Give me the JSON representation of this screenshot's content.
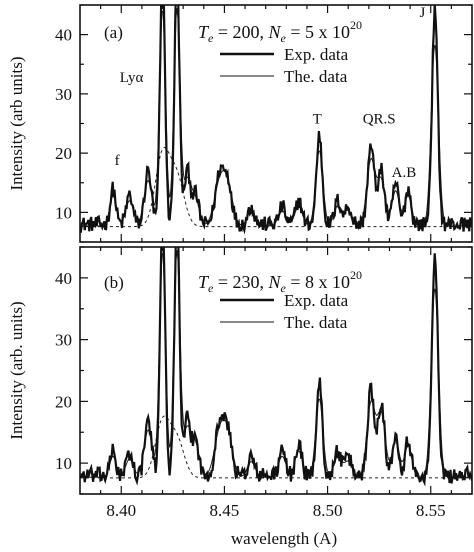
{
  "chart_data": [
    {
      "type": "line",
      "panel_label": "(a)",
      "conditions": {
        "te_symbol": "T",
        "te_sub": "e",
        "te_value": "= 200,",
        "ne_symbol": "N",
        "ne_sub": "e",
        "ne_value": "= 5 x 10",
        "ne_exp": "20"
      },
      "ylabel": "Intensity (arb units)",
      "xlim": [
        8.38,
        8.57
      ],
      "ylim": [
        5,
        45
      ],
      "yticks": [
        10,
        20,
        30,
        40
      ],
      "xticks": [
        8.4,
        8.45,
        8.5,
        8.55
      ],
      "series": [
        {
          "name": "Exp. data",
          "style": "thick"
        },
        {
          "name": "The. data",
          "style": "thin"
        },
        {
          "name": "",
          "style": "dashed"
        }
      ],
      "annotations": [
        {
          "text": "Lyα",
          "x": 8.405,
          "y": 32
        },
        {
          "text": "f",
          "x": 8.398,
          "y": 18
        },
        {
          "text": "T",
          "x": 8.495,
          "y": 25
        },
        {
          "text": "QR.S",
          "x": 8.525,
          "y": 25
        },
        {
          "text": "A.B",
          "x": 8.537,
          "y": 16
        },
        {
          "text": "J",
          "x": 8.546,
          "y": 43
        }
      ],
      "peaks": [
        {
          "x": 8.396,
          "h": 6.0,
          "w": 0.0013
        },
        {
          "x": 8.404,
          "h": 5.0,
          "w": 0.0015
        },
        {
          "x": 8.413,
          "h": 9.0,
          "w": 0.0016
        },
        {
          "x": 8.42,
          "h": 43.0,
          "w": 0.0012
        },
        {
          "x": 8.427,
          "h": 43.0,
          "w": 0.0012
        },
        {
          "x": 8.432,
          "h": 9.0,
          "w": 0.0015
        },
        {
          "x": 8.436,
          "h": 5.0,
          "w": 0.0015
        },
        {
          "x": 8.448,
          "h": 9.0,
          "w": 0.0022
        },
        {
          "x": 8.452,
          "h": 6.0,
          "w": 0.0018
        },
        {
          "x": 8.463,
          "h": 3.0,
          "w": 0.0015
        },
        {
          "x": 8.478,
          "h": 3.0,
          "w": 0.0015
        },
        {
          "x": 8.486,
          "h": 4.0,
          "w": 0.0015
        },
        {
          "x": 8.496,
          "h": 15.0,
          "w": 0.0014
        },
        {
          "x": 8.505,
          "h": 4.0,
          "w": 0.0015
        },
        {
          "x": 8.51,
          "h": 3.0,
          "w": 0.0015
        },
        {
          "x": 8.521,
          "h": 13.0,
          "w": 0.0016
        },
        {
          "x": 8.526,
          "h": 9.0,
          "w": 0.0016
        },
        {
          "x": 8.533,
          "h": 7.0,
          "w": 0.0014
        },
        {
          "x": 8.539,
          "h": 6.0,
          "w": 0.0014
        },
        {
          "x": 8.552,
          "h": 36.0,
          "w": 0.0014
        }
      ],
      "baseline": 8.0,
      "dashed_peaks": [
        {
          "x": 8.42,
          "h": 12.0,
          "w": 0.0035
        },
        {
          "x": 8.427,
          "h": 8.0,
          "w": 0.0035
        }
      ]
    },
    {
      "type": "line",
      "panel_label": "(b)",
      "conditions": {
        "te_symbol": "T",
        "te_sub": "e",
        "te_value": "= 230,",
        "ne_symbol": "N",
        "ne_sub": "e",
        "ne_value": "= 8 x 10",
        "ne_exp": "20"
      },
      "xlabel": "wavelength (A)",
      "ylabel": "Intensity (arb. units)",
      "xlim": [
        8.38,
        8.57
      ],
      "ylim": [
        5,
        45
      ],
      "yticks": [
        10,
        20,
        30,
        40
      ],
      "xticks": [
        8.4,
        8.45,
        8.5,
        8.55
      ],
      "xtick_labels": [
        "8.40",
        "8.45",
        "8.50",
        "8.55"
      ],
      "series": [
        {
          "name": "Exp. data",
          "style": "thick"
        },
        {
          "name": "The. data",
          "style": "thin"
        },
        {
          "name": "",
          "style": "dashed"
        }
      ],
      "peaks": [
        {
          "x": 8.396,
          "h": 4.0,
          "w": 0.0013
        },
        {
          "x": 8.404,
          "h": 3.5,
          "w": 0.0015
        },
        {
          "x": 8.413,
          "h": 9.0,
          "w": 0.0016
        },
        {
          "x": 8.42,
          "h": 43.0,
          "w": 0.0012
        },
        {
          "x": 8.427,
          "h": 43.0,
          "w": 0.0012
        },
        {
          "x": 8.432,
          "h": 9.0,
          "w": 0.0015
        },
        {
          "x": 8.436,
          "h": 6.0,
          "w": 0.0015
        },
        {
          "x": 8.448,
          "h": 9.0,
          "w": 0.0022
        },
        {
          "x": 8.452,
          "h": 6.0,
          "w": 0.0018
        },
        {
          "x": 8.463,
          "h": 3.0,
          "w": 0.0015
        },
        {
          "x": 8.478,
          "h": 4.0,
          "w": 0.0015
        },
        {
          "x": 8.486,
          "h": 5.0,
          "w": 0.0015
        },
        {
          "x": 8.496,
          "h": 15.0,
          "w": 0.0014
        },
        {
          "x": 8.505,
          "h": 4.0,
          "w": 0.0015
        },
        {
          "x": 8.51,
          "h": 3.0,
          "w": 0.0015
        },
        {
          "x": 8.521,
          "h": 14.0,
          "w": 0.0016
        },
        {
          "x": 8.526,
          "h": 12.0,
          "w": 0.0016
        },
        {
          "x": 8.533,
          "h": 7.0,
          "w": 0.0014
        },
        {
          "x": 8.539,
          "h": 6.0,
          "w": 0.0014
        },
        {
          "x": 8.552,
          "h": 36.0,
          "w": 0.0014
        }
      ],
      "baseline": 8.0,
      "dashed_peaks": [
        {
          "x": 8.42,
          "h": 9.0,
          "w": 0.0035
        },
        {
          "x": 8.427,
          "h": 6.0,
          "w": 0.0035
        }
      ]
    }
  ]
}
